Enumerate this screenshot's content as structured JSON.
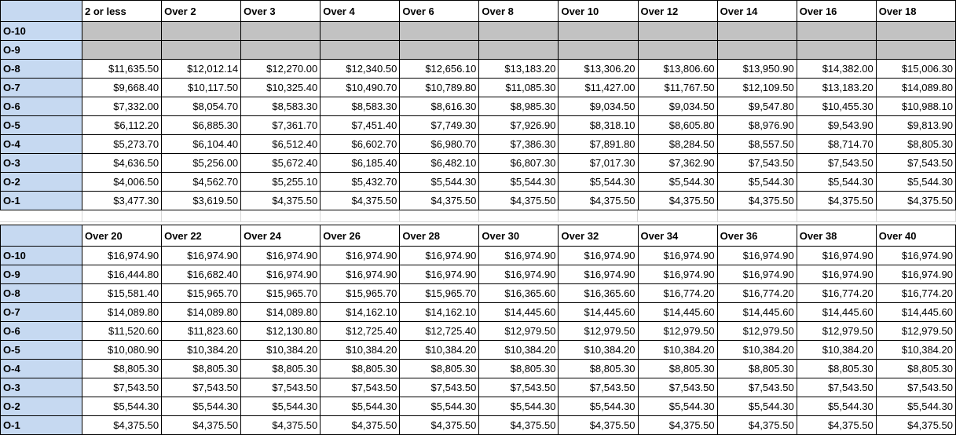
{
  "colors": {
    "label_bg": "#c6d9f1",
    "empty_cell_bg": "#c2c2c2",
    "table_border": "#000000",
    "spacer_gridline": "#d6d6d6"
  },
  "tables": [
    {
      "name": "officer-pay-table-upper",
      "corner_label": "",
      "columns": [
        "2 or less",
        "Over 2",
        "Over 3",
        "Over 4",
        "Over 6",
        "Over 8",
        "Over 10",
        "Over 12",
        "Over 14",
        "Over 16",
        "Over 18"
      ],
      "rows": [
        {
          "grade": "O-10",
          "values": [
            null,
            null,
            null,
            null,
            null,
            null,
            null,
            null,
            null,
            null,
            null
          ]
        },
        {
          "grade": "O-9",
          "values": [
            null,
            null,
            null,
            null,
            null,
            null,
            null,
            null,
            null,
            null,
            null
          ]
        },
        {
          "grade": "O-8",
          "values": [
            "$11,635.50",
            "$12,012.14",
            "$12,270.00",
            "$12,340.50",
            "$12,656.10",
            "$13,183.20",
            "$13,306.20",
            "$13,806.60",
            "$13,950.90",
            "$14,382.00",
            "$15,006.30"
          ]
        },
        {
          "grade": "O-7",
          "values": [
            "$9,668.40",
            "$10,117.50",
            "$10,325.40",
            "$10,490.70",
            "$10,789.80",
            "$11,085.30",
            "$11,427.00",
            "$11,767.50",
            "$12,109.50",
            "$13,183.20",
            "$14,089.80"
          ]
        },
        {
          "grade": "O-6",
          "values": [
            "$7,332.00",
            "$8,054.70",
            "$8,583.30",
            "$8,583.30",
            "$8,616.30",
            "$8,985.30",
            "$9,034.50",
            "$9,034.50",
            "$9,547.80",
            "$10,455.30",
            "$10,988.10"
          ]
        },
        {
          "grade": "O-5",
          "values": [
            "$6,112.20",
            "$6,885.30",
            "$7,361.70",
            "$7,451.40",
            "$7,749.30",
            "$7,926.90",
            "$8,318.10",
            "$8,605.80",
            "$8,976.90",
            "$9,543.90",
            "$9,813.90"
          ]
        },
        {
          "grade": "O-4",
          "values": [
            "$5,273.70",
            "$6,104.40",
            "$6,512.40",
            "$6,602.70",
            "$6,980.70",
            "$7,386.30",
            "$7,891.80",
            "$8,284.50",
            "$8,557.50",
            "$8,714.70",
            "$8,805.30"
          ]
        },
        {
          "grade": "O-3",
          "values": [
            "$4,636.50",
            "$5,256.00",
            "$5,672.40",
            "$6,185.40",
            "$6,482.10",
            "$6,807.30",
            "$7,017.30",
            "$7,362.90",
            "$7,543.50",
            "$7,543.50",
            "$7,543.50"
          ]
        },
        {
          "grade": "O-2",
          "values": [
            "$4,006.50",
            "$4,562.70",
            "$5,255.10",
            "$5,432.70",
            "$5,544.30",
            "$5,544.30",
            "$5,544.30",
            "$5,544.30",
            "$5,544.30",
            "$5,544.30",
            "$5,544.30"
          ]
        },
        {
          "grade": "O-1",
          "values": [
            "$3,477.30",
            "$3,619.50",
            "$4,375.50",
            "$4,375.50",
            "$4,375.50",
            "$4,375.50",
            "$4,375.50",
            "$4,375.50",
            "$4,375.50",
            "$4,375.50",
            "$4,375.50"
          ]
        }
      ]
    },
    {
      "name": "officer-pay-table-lower",
      "corner_label": "",
      "columns": [
        "Over 20",
        "Over 22",
        "Over 24",
        "Over 26",
        "Over 28",
        "Over 30",
        "Over 32",
        "Over 34",
        "Over 36",
        "Over 38",
        "Over 40"
      ],
      "rows": [
        {
          "grade": "O-10",
          "values": [
            "$16,974.90",
            "$16,974.90",
            "$16,974.90",
            "$16,974.90",
            "$16,974.90",
            "$16,974.90",
            "$16,974.90",
            "$16,974.90",
            "$16,974.90",
            "$16,974.90",
            "$16,974.90"
          ]
        },
        {
          "grade": "O-9",
          "values": [
            "$16,444.80",
            "$16,682.40",
            "$16,974.90",
            "$16,974.90",
            "$16,974.90",
            "$16,974.90",
            "$16,974.90",
            "$16,974.90",
            "$16,974.90",
            "$16,974.90",
            "$16,974.90"
          ]
        },
        {
          "grade": "O-8",
          "values": [
            "$15,581.40",
            "$15,965.70",
            "$15,965.70",
            "$15,965.70",
            "$15,965.70",
            "$16,365.60",
            "$16,365.60",
            "$16,774.20",
            "$16,774.20",
            "$16,774.20",
            "$16,774.20"
          ]
        },
        {
          "grade": "O-7",
          "values": [
            "$14,089.80",
            "$14,089.80",
            "$14,089.80",
            "$14,162.10",
            "$14,162.10",
            "$14,445.60",
            "$14,445.60",
            "$14,445.60",
            "$14,445.60",
            "$14,445.60",
            "$14,445.60"
          ]
        },
        {
          "grade": "O-6",
          "values": [
            "$11,520.60",
            "$11,823.60",
            "$12,130.80",
            "$12,725.40",
            "$12,725.40",
            "$12,979.50",
            "$12,979.50",
            "$12,979.50",
            "$12,979.50",
            "$12,979.50",
            "$12,979.50"
          ]
        },
        {
          "grade": "O-5",
          "values": [
            "$10,080.90",
            "$10,384.20",
            "$10,384.20",
            "$10,384.20",
            "$10,384.20",
            "$10,384.20",
            "$10,384.20",
            "$10,384.20",
            "$10,384.20",
            "$10,384.20",
            "$10,384.20"
          ]
        },
        {
          "grade": "O-4",
          "values": [
            "$8,805.30",
            "$8,805.30",
            "$8,805.30",
            "$8,805.30",
            "$8,805.30",
            "$8,805.30",
            "$8,805.30",
            "$8,805.30",
            "$8,805.30",
            "$8,805.30",
            "$8,805.30"
          ]
        },
        {
          "grade": "O-3",
          "values": [
            "$7,543.50",
            "$7,543.50",
            "$7,543.50",
            "$7,543.50",
            "$7,543.50",
            "$7,543.50",
            "$7,543.50",
            "$7,543.50",
            "$7,543.50",
            "$7,543.50",
            "$7,543.50"
          ]
        },
        {
          "grade": "O-2",
          "values": [
            "$5,544.30",
            "$5,544.30",
            "$5,544.30",
            "$5,544.30",
            "$5,544.30",
            "$5,544.30",
            "$5,544.30",
            "$5,544.30",
            "$5,544.30",
            "$5,544.30",
            "$5,544.30"
          ]
        },
        {
          "grade": "O-1",
          "values": [
            "$4,375.50",
            "$4,375.50",
            "$4,375.50",
            "$4,375.50",
            "$4,375.50",
            "$4,375.50",
            "$4,375.50",
            "$4,375.50",
            "$4,375.50",
            "$4,375.50",
            "$4,375.50"
          ]
        }
      ]
    }
  ]
}
